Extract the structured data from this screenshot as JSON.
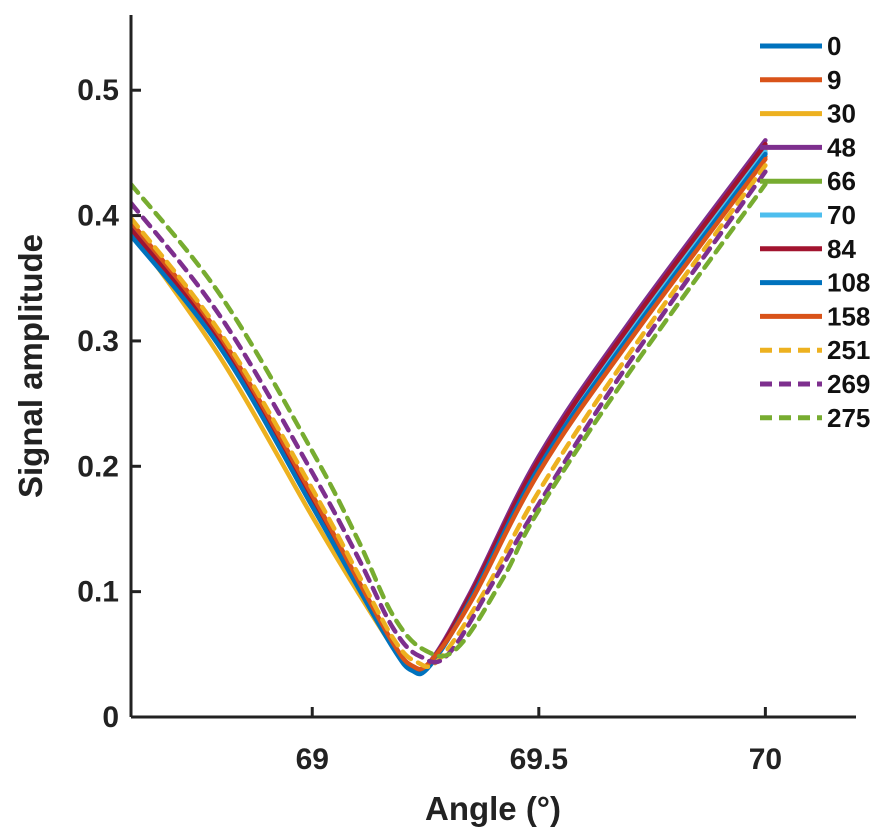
{
  "chart_data": {
    "type": "line",
    "title": "",
    "xlabel": "Angle (°)",
    "ylabel": "Signal amplitude",
    "xlim": [
      68.6,
      70.2
    ],
    "ylim": [
      0,
      0.56
    ],
    "xticks": [
      69,
      69.5,
      70
    ],
    "xtick_labels": [
      "69",
      "69.5",
      "70"
    ],
    "yticks": [
      0,
      0.1,
      0.2,
      0.3,
      0.4,
      0.5
    ],
    "ytick_labels": [
      "0",
      "0.1",
      "0.2",
      "0.3",
      "0.4",
      "0.5"
    ],
    "grid": false,
    "legend_position": "top-right",
    "series": [
      {
        "name": "0",
        "color": "#0072BD",
        "dashed": false,
        "x": [
          68.6,
          68.8,
          69.0,
          69.1,
          69.18,
          69.22,
          69.26,
          69.35,
          69.5,
          69.7,
          70.0
        ],
        "y": [
          0.385,
          0.295,
          0.17,
          0.105,
          0.055,
          0.038,
          0.042,
          0.095,
          0.2,
          0.305,
          0.45
        ]
      },
      {
        "name": "9",
        "color": "#D95319",
        "dashed": false,
        "x": [
          68.6,
          68.8,
          69.0,
          69.1,
          69.18,
          69.22,
          69.26,
          69.35,
          69.5,
          69.7,
          70.0
        ],
        "y": [
          0.39,
          0.298,
          0.172,
          0.107,
          0.056,
          0.039,
          0.043,
          0.093,
          0.197,
          0.302,
          0.447
        ]
      },
      {
        "name": "30",
        "color": "#EDB120",
        "dashed": false,
        "x": [
          68.6,
          68.8,
          69.0,
          69.1,
          69.18,
          69.22,
          69.26,
          69.35,
          69.5,
          69.7,
          70.0
        ],
        "y": [
          0.388,
          0.285,
          0.16,
          0.1,
          0.055,
          0.04,
          0.044,
          0.096,
          0.202,
          0.307,
          0.452
        ]
      },
      {
        "name": "48",
        "color": "#7E2F8E",
        "dashed": false,
        "x": [
          68.6,
          68.8,
          69.0,
          69.1,
          69.18,
          69.22,
          69.26,
          69.35,
          69.5,
          69.7,
          70.0
        ],
        "y": [
          0.392,
          0.3,
          0.175,
          0.108,
          0.057,
          0.04,
          0.044,
          0.1,
          0.208,
          0.315,
          0.46
        ]
      },
      {
        "name": "66",
        "color": "#77AC30",
        "dashed": false,
        "x": [
          68.6,
          68.8,
          69.0,
          69.1,
          69.18,
          69.22,
          69.26,
          69.35,
          69.5,
          69.7,
          70.0
        ],
        "y": [
          0.387,
          0.296,
          0.171,
          0.106,
          0.055,
          0.039,
          0.043,
          0.097,
          0.203,
          0.31,
          0.455
        ]
      },
      {
        "name": "70",
        "color": "#4DBEEE",
        "dashed": false,
        "x": [
          68.6,
          68.8,
          69.0,
          69.1,
          69.18,
          69.22,
          69.26,
          69.35,
          69.5,
          69.7,
          70.0
        ],
        "y": [
          0.386,
          0.295,
          0.17,
          0.105,
          0.055,
          0.038,
          0.042,
          0.096,
          0.201,
          0.306,
          0.451
        ]
      },
      {
        "name": "84",
        "color": "#A2142F",
        "dashed": false,
        "x": [
          68.6,
          68.8,
          69.0,
          69.1,
          69.18,
          69.22,
          69.26,
          69.35,
          69.5,
          69.7,
          70.0
        ],
        "y": [
          0.389,
          0.297,
          0.172,
          0.106,
          0.056,
          0.039,
          0.043,
          0.098,
          0.205,
          0.312,
          0.457
        ]
      },
      {
        "name": "108",
        "color": "#0072BD",
        "dashed": false,
        "x": [
          68.6,
          68.8,
          69.0,
          69.1,
          69.18,
          69.22,
          69.26,
          69.35,
          69.5,
          69.7,
          70.0
        ],
        "y": [
          0.384,
          0.293,
          0.168,
          0.104,
          0.054,
          0.037,
          0.041,
          0.094,
          0.199,
          0.304,
          0.449
        ]
      },
      {
        "name": "158",
        "color": "#D95319",
        "dashed": false,
        "x": [
          68.6,
          68.8,
          69.0,
          69.1,
          69.18,
          69.22,
          69.26,
          69.35,
          69.5,
          69.7,
          70.0
        ],
        "y": [
          0.395,
          0.302,
          0.177,
          0.11,
          0.058,
          0.041,
          0.044,
          0.092,
          0.195,
          0.3,
          0.445
        ]
      },
      {
        "name": "251",
        "color": "#EDB120",
        "dashed": true,
        "x": [
          68.6,
          68.8,
          69.0,
          69.1,
          69.18,
          69.23,
          69.28,
          69.38,
          69.5,
          69.7,
          70.0
        ],
        "y": [
          0.398,
          0.305,
          0.182,
          0.115,
          0.062,
          0.044,
          0.046,
          0.1,
          0.18,
          0.29,
          0.44
        ]
      },
      {
        "name": "269",
        "color": "#7E2F8E",
        "dashed": true,
        "x": [
          68.6,
          68.8,
          69.0,
          69.1,
          69.18,
          69.24,
          69.3,
          69.4,
          69.5,
          69.7,
          70.0
        ],
        "y": [
          0.41,
          0.318,
          0.195,
          0.128,
          0.07,
          0.048,
          0.05,
          0.108,
          0.17,
          0.283,
          0.435
        ]
      },
      {
        "name": "275",
        "color": "#77AC30",
        "dashed": true,
        "x": [
          68.6,
          68.8,
          69.0,
          69.1,
          69.18,
          69.25,
          69.32,
          69.42,
          69.5,
          69.7,
          70.0
        ],
        "y": [
          0.425,
          0.335,
          0.212,
          0.142,
          0.08,
          0.053,
          0.055,
          0.11,
          0.165,
          0.275,
          0.425
        ]
      }
    ]
  }
}
